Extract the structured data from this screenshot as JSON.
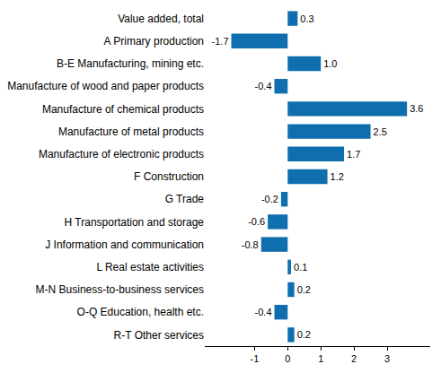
{
  "chart_data": {
    "type": "bar",
    "orientation": "horizontal",
    "categories": [
      "Value added, total",
      "A Primary production",
      "B-E Manufacturing, mining etc.",
      "Manufacture of wood and paper products",
      "Manufacture of chemical products",
      "Manufacture of metal products",
      "Manufacture of electronic products",
      "F Construction",
      "G Trade",
      "H Transportation and storage",
      "J Information and communication",
      "L Real estate activities",
      "M-N Business-to-business services",
      "O-Q Education, health etc.",
      "R-T Other services"
    ],
    "values": [
      0.3,
      -1.7,
      1.0,
      -0.4,
      3.6,
      2.5,
      1.7,
      1.2,
      -0.2,
      -0.6,
      -0.8,
      0.1,
      0.2,
      -0.4,
      0.2
    ],
    "value_labels": [
      "0.3",
      "-1.7",
      "1.0",
      "-0.4",
      "3.6",
      "2.5",
      "1.7",
      "1.2",
      "-0.2",
      "-0.6",
      "-0.8",
      "0.1",
      "0.2",
      "-0.4",
      "0.2"
    ],
    "color": "#0f6eae",
    "xlim": [
      -2.5,
      4.3
    ],
    "xticks": [
      -1,
      0,
      1,
      2,
      3
    ],
    "grid": false,
    "data_labels": true
  }
}
